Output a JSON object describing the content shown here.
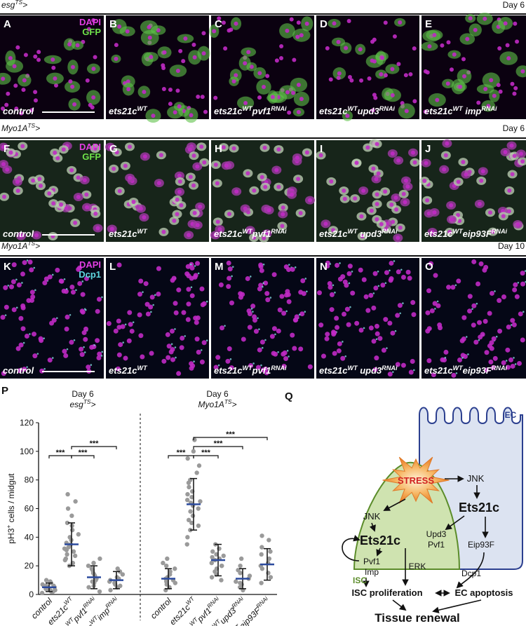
{
  "figure": {
    "rows": [
      {
        "header": [
          "esg",
          "TS",
          ">"
        ],
        "day": "Day 6",
        "panels": [
          {
            "letter": "A",
            "label": [
              "control"
            ],
            "stains": [
              {
                "text": "DAPI",
                "color": "#e23ee2"
              },
              {
                "text": "GFP",
                "color": "#6fe24a"
              }
            ]
          },
          {
            "letter": "B",
            "label": [
              "ets21c",
              "WT"
            ]
          },
          {
            "letter": "C",
            "label": [
              "ets21c",
              "WT",
              "pvf1",
              "RNAi"
            ]
          },
          {
            "letter": "D",
            "label": [
              "ets21c",
              "WT",
              "upd3",
              "RNAi"
            ]
          },
          {
            "letter": "E",
            "label": [
              "ets21c",
              "WT",
              " imp",
              "RNAi"
            ]
          }
        ]
      },
      {
        "header": [
          "Myo1A",
          "TS",
          ">"
        ],
        "day": "Day 6",
        "panels": [
          {
            "letter": "F",
            "label": [
              "control"
            ],
            "stains": [
              {
                "text": "DAPI",
                "color": "#e23ee2"
              },
              {
                "text": "GFP",
                "color": "#6fe24a"
              }
            ]
          },
          {
            "letter": "G",
            "label": [
              "ets21c",
              "WT"
            ]
          },
          {
            "letter": "H",
            "label": [
              "ets21c",
              "WT",
              "pvf1",
              "RNAi"
            ]
          },
          {
            "letter": "I",
            "label": [
              "ets21c",
              "WT",
              " upd3",
              "RNAi"
            ]
          },
          {
            "letter": "J",
            "label": [
              "ets21c",
              "WT",
              "eip93F",
              "RNAi"
            ]
          }
        ]
      },
      {
        "header": [
          "Myo1A",
          "TS",
          ">"
        ],
        "day": "Day 10",
        "panels": [
          {
            "letter": "K",
            "label": [
              "control"
            ],
            "stains": [
              {
                "text": "DAPI",
                "color": "#e23ee2"
              },
              {
                "text": "Dcp1",
                "color": "#5fd8e0"
              }
            ]
          },
          {
            "letter": "L",
            "label": [
              "ets21c",
              "WT"
            ]
          },
          {
            "letter": "M",
            "label": [
              "ets21c",
              "WT",
              "pvf1",
              "RNAi"
            ]
          },
          {
            "letter": "N",
            "label": [
              "ets21c",
              "WT",
              " upd3",
              "RNAi"
            ]
          },
          {
            "letter": "O",
            "label": [
              "ets21c",
              "WT",
              "eip93F",
              "RNAi"
            ]
          }
        ]
      }
    ]
  },
  "chart_data": {
    "type": "dot",
    "letter": "P",
    "y_label": [
      "pH3",
      "+",
      " cells / midgut"
    ],
    "ylim": [
      0,
      120
    ],
    "yticks": [
      0,
      20,
      40,
      60,
      80,
      100,
      120
    ],
    "groups": [
      {
        "day": "Day 6",
        "driver": [
          "esg",
          "TS",
          ">"
        ]
      },
      {
        "day": "Day 6",
        "driver": [
          "Myo1A",
          "TS",
          ">"
        ]
      }
    ],
    "categories": [
      [
        "control"
      ],
      [
        "ets21c",
        "WT"
      ],
      [
        "ets21c",
        "WT",
        "pvf1",
        "RNAi"
      ],
      [
        "ets21c",
        "WT",
        "imp",
        "RNAi"
      ],
      [
        "control"
      ],
      [
        "ets21c",
        "WT"
      ],
      [
        "ets21c",
        "WT",
        "pvf1",
        "RNAi"
      ],
      [
        "ets21c",
        "WT",
        "upd3",
        "RNAi"
      ],
      [
        "ets21c",
        "WT",
        "eip93F",
        "RNAi"
      ]
    ],
    "point_color": "#9a9a9a",
    "mean_color": "#2b4a9e",
    "points": [
      [
        2,
        3,
        4,
        5,
        6,
        8,
        3,
        1,
        7,
        9,
        5,
        4,
        2,
        6,
        10
      ],
      [
        20,
        22,
        25,
        28,
        30,
        32,
        33,
        35,
        36,
        38,
        40,
        42,
        45,
        48,
        50,
        55,
        60,
        65,
        70,
        27,
        31,
        24
      ],
      [
        2,
        5,
        8,
        10,
        12,
        14,
        15,
        18,
        20,
        22,
        25,
        6,
        9,
        11,
        13,
        17
      ],
      [
        3,
        5,
        7,
        9,
        10,
        12,
        14,
        16,
        18,
        6,
        8,
        11
      ],
      [
        3,
        5,
        7,
        9,
        10,
        12,
        14,
        16,
        18,
        20,
        22,
        25,
        8,
        11
      ],
      [
        35,
        40,
        45,
        50,
        55,
        58,
        60,
        62,
        65,
        68,
        70,
        72,
        75,
        78,
        80,
        85,
        90,
        95,
        100,
        108,
        48,
        52,
        64,
        66
      ],
      [
        10,
        14,
        16,
        18,
        20,
        22,
        24,
        26,
        28,
        30,
        32,
        35,
        12,
        20,
        25,
        27
      ],
      [
        3,
        5,
        7,
        9,
        11,
        13,
        15,
        17,
        20,
        25,
        8
      ],
      [
        8,
        12,
        15,
        18,
        20,
        22,
        25,
        30,
        33,
        38,
        41,
        28
      ]
    ],
    "means": [
      5,
      35,
      12,
      10,
      11,
      63,
      24,
      11,
      21
    ],
    "sd": [
      3,
      15,
      8,
      6,
      7,
      18,
      11,
      7,
      11
    ],
    "significance": [
      {
        "label": "***",
        "pair": [
          1,
          0
        ]
      },
      {
        "label": "***",
        "pair": [
          1,
          2
        ]
      },
      {
        "label": "***",
        "pair": [
          1,
          3
        ]
      },
      {
        "label": "***",
        "pair": [
          5,
          4
        ]
      },
      {
        "label": "***",
        "pair": [
          5,
          6
        ]
      },
      {
        "label": "***",
        "pair": [
          5,
          7
        ]
      },
      {
        "label": "***",
        "pair": [
          5,
          8
        ]
      }
    ]
  },
  "diagram": {
    "letter": "Q",
    "nodes": {
      "ec": "EC",
      "stress": "STRESS",
      "jnk_ec": "JNK",
      "ets_ec": "Ets21c",
      "upd3": "Upd3",
      "pvf1_ec": "Pvf1",
      "eip93f": "Eip93F",
      "dcp1": "Dcp1",
      "jnk_isc": "JNK",
      "ets_isc": "Ets21c",
      "pvf1_isc": "Pvf1",
      "imp": "Imp",
      "erk": "ERK",
      "isc": "ISC",
      "prolif": "ISC proliferation",
      "apoptosis": "EC apoptosis",
      "renewal": "Tissue renewal"
    }
  }
}
